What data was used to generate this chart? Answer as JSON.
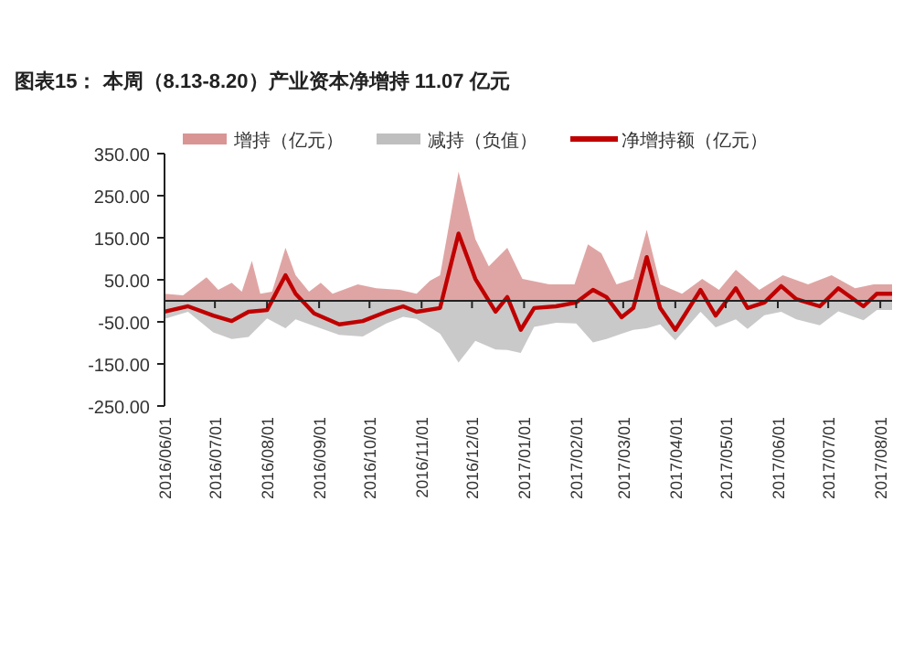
{
  "chart_data": {
    "type": "area",
    "title": "图表15：  本周（8.13-8.20）产业资本净增持 11.07 亿元",
    "legend": "top",
    "grid": false,
    "xlim": [
      "2016-06-01",
      "2017-08-08"
    ],
    "xticks": [
      {
        "value": "2016-06-01",
        "label": "2016/06/01"
      },
      {
        "value": "2016-07-01",
        "label": "2016/07/01"
      },
      {
        "value": "2016-08-01",
        "label": "2016/08/01"
      },
      {
        "value": "2016-09-01",
        "label": "2016/09/01"
      },
      {
        "value": "2016-10-01",
        "label": "2016/10/01"
      },
      {
        "value": "2016-11-01",
        "label": "2016/11/01"
      },
      {
        "value": "2016-12-01",
        "label": "2016/12/01"
      },
      {
        "value": "2017-01-01",
        "label": "2017/01/01"
      },
      {
        "value": "2017-02-01",
        "label": "2017/02/01"
      },
      {
        "value": "2017-03-01",
        "label": "2017/03/01"
      },
      {
        "value": "2017-04-01",
        "label": "2017/04/01"
      },
      {
        "value": "2017-05-01",
        "label": "2017/05/01"
      },
      {
        "value": "2017-06-01",
        "label": "2017/06/01"
      },
      {
        "value": "2017-07-01",
        "label": "2017/07/01"
      },
      {
        "value": "2017-08-01",
        "label": "2017/08/01"
      }
    ],
    "ylim": [
      -250,
      350
    ],
    "yticks": [
      {
        "value": 350,
        "label": "350.00"
      },
      {
        "value": 250,
        "label": "250.00"
      },
      {
        "value": 150,
        "label": "150.00"
      },
      {
        "value": 50,
        "label": "50.00"
      },
      {
        "value": -50,
        "label": "-50.00"
      },
      {
        "value": -150,
        "label": "-150.00"
      },
      {
        "value": -250,
        "label": "-250.00"
      }
    ],
    "series": [
      {
        "name": "增持（亿元）",
        "color": "#d99594",
        "x": [
          "2016-06-01",
          "2016-06-12",
          "2016-06-26",
          "2016-07-03",
          "2016-07-11",
          "2016-07-17",
          "2016-07-23",
          "2016-07-28",
          "2016-08-04",
          "2016-08-12",
          "2016-08-18",
          "2016-08-26",
          "2016-09-02",
          "2016-09-09",
          "2016-09-24",
          "2016-10-05",
          "2016-10-19",
          "2016-10-29",
          "2016-11-06",
          "2016-11-12",
          "2016-11-23",
          "2016-12-03",
          "2016-12-11",
          "2016-12-22",
          "2016-12-31",
          "2017-01-16",
          "2017-01-31",
          "2017-02-08",
          "2017-02-16",
          "2017-02-25",
          "2017-03-07",
          "2017-03-15",
          "2017-03-23",
          "2017-04-05",
          "2017-04-17",
          "2017-04-27",
          "2017-05-07",
          "2017-05-21",
          "2017-06-04",
          "2017-06-19",
          "2017-07-03",
          "2017-07-17",
          "2017-07-28",
          "2017-08-08"
        ],
        "values": [
          17,
          13,
          56,
          26,
          43,
          22,
          95,
          17,
          22,
          126,
          61,
          22,
          43,
          17,
          39,
          30,
          26,
          17,
          48,
          61,
          307,
          147,
          82,
          126,
          52,
          39,
          39,
          134,
          113,
          39,
          52,
          169,
          39,
          17,
          52,
          26,
          74,
          26,
          61,
          39,
          61,
          30,
          39,
          39
        ]
      },
      {
        "name": "减持（负值）",
        "color": "#bfbfbf",
        "x": [
          "2016-06-01",
          "2016-06-15",
          "2016-06-30",
          "2016-07-11",
          "2016-07-21",
          "2016-08-01",
          "2016-08-12",
          "2016-08-18",
          "2016-08-29",
          "2016-09-13",
          "2016-09-27",
          "2016-10-11",
          "2016-10-21",
          "2016-10-29",
          "2016-11-12",
          "2016-11-23",
          "2016-12-03",
          "2016-12-15",
          "2016-12-22",
          "2016-12-30",
          "2017-01-07",
          "2017-01-20",
          "2017-02-01",
          "2017-02-11",
          "2017-02-19",
          "2017-02-28",
          "2017-03-07",
          "2017-03-15",
          "2017-03-23",
          "2017-04-01",
          "2017-04-16",
          "2017-04-25",
          "2017-05-07",
          "2017-05-14",
          "2017-05-24",
          "2017-06-03",
          "2017-06-12",
          "2017-06-26",
          "2017-07-07",
          "2017-07-22",
          "2017-07-30",
          "2017-08-08"
        ],
        "values": [
          -43,
          -26,
          -75,
          -91,
          -86,
          -42,
          -65,
          -44,
          -60,
          -81,
          -85,
          -54,
          -38,
          -43,
          -78,
          -147,
          -95,
          -116,
          -117,
          -124,
          -62,
          -52,
          -54,
          -99,
          -91,
          -78,
          -69,
          -65,
          -56,
          -94,
          -26,
          -63,
          -44,
          -67,
          -34,
          -26,
          -44,
          -58,
          -25,
          -46,
          -22,
          -22
        ]
      },
      {
        "name": "净增持额（亿元）",
        "type": "line",
        "color": "#c00000",
        "x": [
          "2016-06-01",
          "2016-06-15",
          "2016-06-30",
          "2016-07-11",
          "2016-07-21",
          "2016-08-01",
          "2016-08-12",
          "2016-08-18",
          "2016-08-29",
          "2016-09-13",
          "2016-09-27",
          "2016-10-11",
          "2016-10-21",
          "2016-10-29",
          "2016-11-12",
          "2016-11-23",
          "2016-12-03",
          "2016-12-15",
          "2016-12-22",
          "2016-12-30",
          "2017-01-07",
          "2017-01-20",
          "2017-02-01",
          "2017-02-11",
          "2017-02-19",
          "2017-02-28",
          "2017-03-07",
          "2017-03-15",
          "2017-03-23",
          "2017-04-01",
          "2017-04-16",
          "2017-04-25",
          "2017-05-07",
          "2017-05-14",
          "2017-05-24",
          "2017-06-03",
          "2017-06-12",
          "2017-06-26",
          "2017-07-07",
          "2017-07-22",
          "2017-07-30",
          "2017-08-08"
        ],
        "values": [
          -26,
          -13,
          -35,
          -48,
          -26,
          -22,
          61,
          17,
          -30,
          -56,
          -48,
          -26,
          -13,
          -26,
          -17,
          160,
          52,
          -26,
          9,
          -69,
          -17,
          -13,
          -4,
          26,
          9,
          -39,
          -17,
          104,
          -17,
          -69,
          26,
          -35,
          30,
          -17,
          -4,
          35,
          4,
          -13,
          30,
          -13,
          17,
          17
        ]
      }
    ]
  }
}
